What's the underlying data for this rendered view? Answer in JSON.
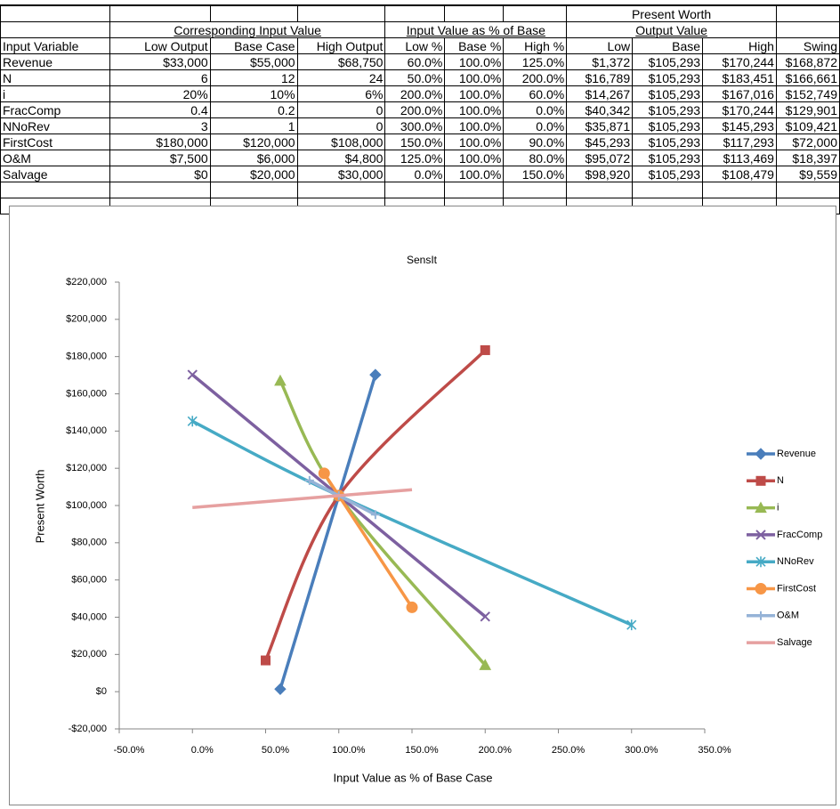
{
  "table": {
    "header_top": "Present Worth",
    "group_headers": [
      "Corresponding Input Value",
      "Input Value as % of Base",
      "Output Value"
    ],
    "columns": [
      "Input Variable",
      "Low Output",
      "Base Case",
      "High Output",
      "Low %",
      "Base %",
      "High %",
      "Low",
      "Base",
      "High",
      "Swing"
    ],
    "rows": [
      [
        "Revenue",
        "$33,000",
        "$55,000",
        "$68,750",
        "60.0%",
        "100.0%",
        "125.0%",
        "$1,372",
        "$105,293",
        "$170,244",
        "$168,872"
      ],
      [
        "N",
        "6",
        "12",
        "24",
        "50.0%",
        "100.0%",
        "200.0%",
        "$16,789",
        "$105,293",
        "$183,451",
        "$166,661"
      ],
      [
        "i",
        "20%",
        "10%",
        "6%",
        "200.0%",
        "100.0%",
        "60.0%",
        "$14,267",
        "$105,293",
        "$167,016",
        "$152,749"
      ],
      [
        "FracComp",
        "0.4",
        "0.2",
        "0",
        "200.0%",
        "100.0%",
        "0.0%",
        "$40,342",
        "$105,293",
        "$170,244",
        "$129,901"
      ],
      [
        "NNoRev",
        "3",
        "1",
        "0",
        "300.0%",
        "100.0%",
        "0.0%",
        "$35,871",
        "$105,293",
        "$145,293",
        "$109,421"
      ],
      [
        "FirstCost",
        "$180,000",
        "$120,000",
        "$108,000",
        "150.0%",
        "100.0%",
        "90.0%",
        "$45,293",
        "$105,293",
        "$117,293",
        "$72,000"
      ],
      [
        "O&M",
        "$7,500",
        "$6,000",
        "$4,800",
        "125.0%",
        "100.0%",
        "80.0%",
        "$95,072",
        "$105,293",
        "$113,469",
        "$18,397"
      ],
      [
        "Salvage",
        "$0",
        "$20,000",
        "$30,000",
        "0.0%",
        "100.0%",
        "150.0%",
        "$98,920",
        "$105,293",
        "$108,479",
        "$9,559"
      ]
    ]
  },
  "chart_data": {
    "type": "line",
    "title": "SensIt",
    "x_label": "Input Value as % of Base Case",
    "y_label": "Present Worth",
    "xlim": [
      -50,
      350
    ],
    "xticks": [
      {
        "value": -50,
        "label": "-50.0%"
      },
      {
        "value": 0,
        "label": "0.0%"
      },
      {
        "value": 50,
        "label": "50.0%"
      },
      {
        "value": 100,
        "label": "100.0%"
      },
      {
        "value": 150,
        "label": "150.0%"
      },
      {
        "value": 200,
        "label": "200.0%"
      },
      {
        "value": 250,
        "label": "250.0%"
      },
      {
        "value": 300,
        "label": "300.0%"
      },
      {
        "value": 350,
        "label": "350.0%"
      }
    ],
    "ylim": [
      -20000,
      220000
    ],
    "yticks": [
      {
        "value": -20000,
        "label": "-$20,000"
      },
      {
        "value": 0,
        "label": "$0"
      },
      {
        "value": 20000,
        "label": "$20,000"
      },
      {
        "value": 40000,
        "label": "$40,000"
      },
      {
        "value": 60000,
        "label": "$60,000"
      },
      {
        "value": 80000,
        "label": "$80,000"
      },
      {
        "value": 100000,
        "label": "$100,000"
      },
      {
        "value": 120000,
        "label": "$120,000"
      },
      {
        "value": 140000,
        "label": "$140,000"
      },
      {
        "value": 160000,
        "label": "$160,000"
      },
      {
        "value": 180000,
        "label": "$180,000"
      },
      {
        "value": 200000,
        "label": "$200,000"
      },
      {
        "value": 220000,
        "label": "$220,000"
      }
    ],
    "legend": "right",
    "series": [
      {
        "name": "Revenue",
        "color": "#4a7ebb",
        "marker": "diamond",
        "x": [
          60,
          100,
          125
        ],
        "values": [
          1372,
          105293,
          170244
        ]
      },
      {
        "name": "N",
        "color": "#be4b48",
        "marker": "square",
        "x": [
          50,
          100,
          200
        ],
        "values": [
          16789,
          105293,
          183451
        ]
      },
      {
        "name": "i",
        "color": "#98b954",
        "marker": "triangle",
        "x": [
          200,
          100,
          60
        ],
        "values": [
          14267,
          105293,
          167016
        ]
      },
      {
        "name": "FracComp",
        "color": "#7d60a0",
        "marker": "x",
        "x": [
          200,
          100,
          0
        ],
        "values": [
          40342,
          105293,
          170244
        ]
      },
      {
        "name": "NNoRev",
        "color": "#46aac5",
        "marker": "star",
        "x": [
          300,
          100,
          0
        ],
        "values": [
          35871,
          105293,
          145293
        ]
      },
      {
        "name": "FirstCost",
        "color": "#f79646",
        "marker": "circle",
        "x": [
          150,
          100,
          90
        ],
        "values": [
          45293,
          105293,
          117293
        ]
      },
      {
        "name": "O&M",
        "color": "#95b3d7",
        "marker": "plus",
        "x": [
          125,
          100,
          80
        ],
        "values": [
          95072,
          105293,
          113469
        ]
      },
      {
        "name": "Salvage",
        "color": "#e6a0a0",
        "marker": "none",
        "x": [
          0,
          100,
          150
        ],
        "values": [
          98920,
          105293,
          108479
        ]
      }
    ]
  }
}
